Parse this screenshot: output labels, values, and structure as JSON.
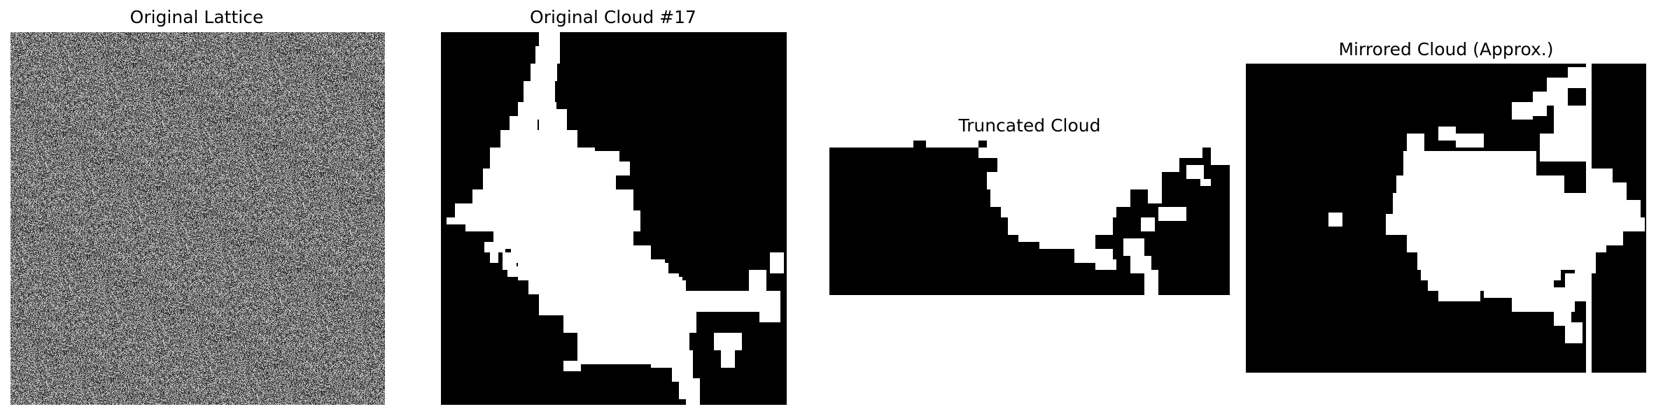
{
  "panels": [
    {
      "id": "lattice",
      "title": "Original Lattice",
      "kind": "noise"
    },
    {
      "id": "original",
      "title": "Original Cloud #17",
      "kind": "cloud"
    },
    {
      "id": "truncated",
      "title": "Truncated Cloud",
      "kind": "cloud"
    },
    {
      "id": "mirrored",
      "title": "Mirrored Cloud (Approx.)",
      "kind": "cloud"
    }
  ],
  "colors": {
    "background": "#000000",
    "cluster": "#ffffff",
    "noise_dark": "#1e1e1e",
    "noise_light": "#c8c8c8"
  }
}
